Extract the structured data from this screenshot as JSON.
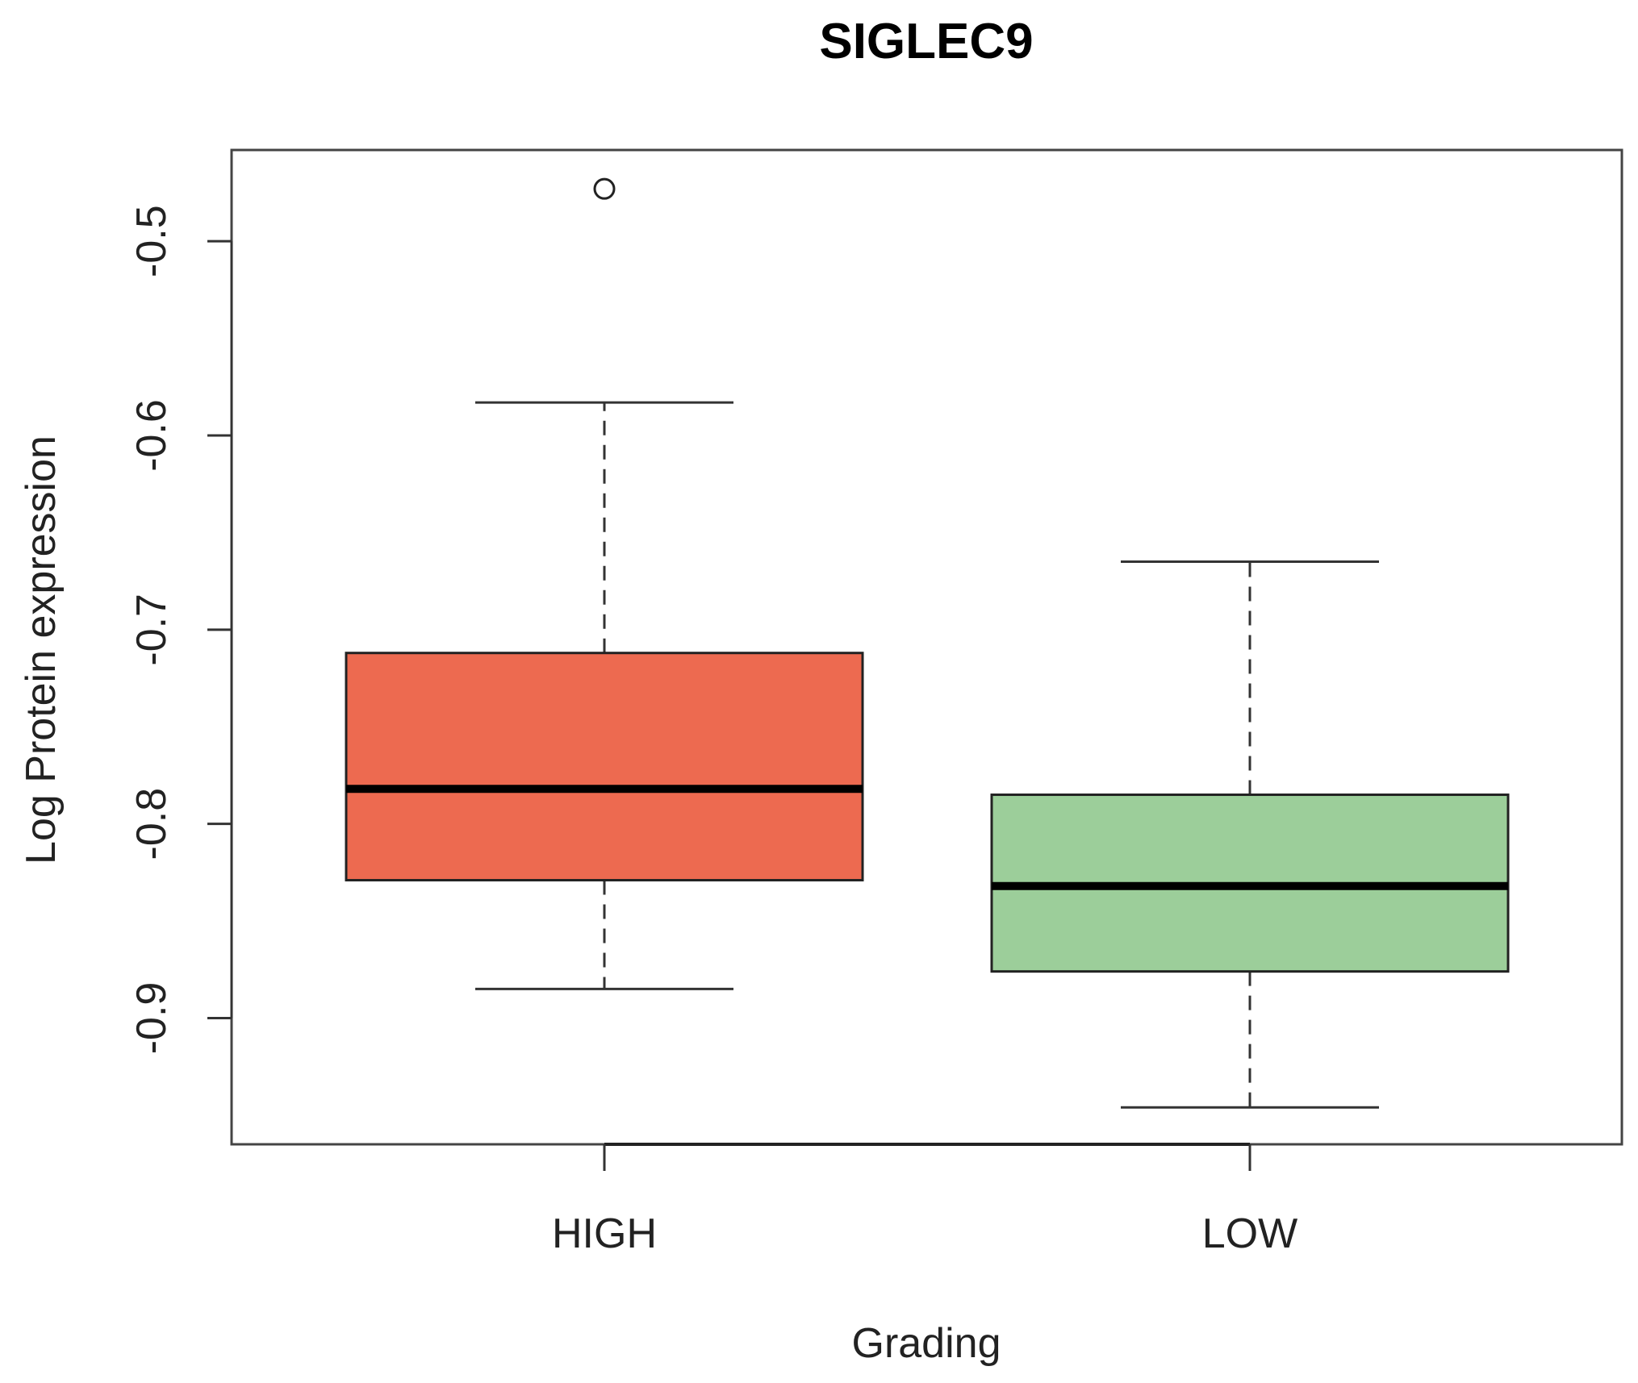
{
  "chart_data": {
    "type": "boxplot",
    "title": "SIGLEC9",
    "xlabel": "Grading",
    "ylabel": "Log Protein expression",
    "ylim": [
      -0.965,
      -0.453
    ],
    "yticks": [
      -0.9,
      -0.8,
      -0.7,
      -0.6,
      -0.5
    ],
    "ytick_labels": [
      "-0.9",
      "-0.8",
      "-0.7",
      "-0.6",
      "-0.5"
    ],
    "categories": [
      "HIGH",
      "LOW"
    ],
    "boxes": [
      {
        "name": "HIGH",
        "whisker_low": -0.885,
        "q1": -0.829,
        "median": -0.782,
        "q3": -0.712,
        "whisker_high": -0.583,
        "outliers": [
          -0.473
        ],
        "color": "#ED6A50"
      },
      {
        "name": "LOW",
        "whisker_low": -0.946,
        "q1": -0.876,
        "median": -0.832,
        "q3": -0.785,
        "whisker_high": -0.665,
        "outliers": [],
        "color": "#9CCE9A"
      }
    ]
  }
}
